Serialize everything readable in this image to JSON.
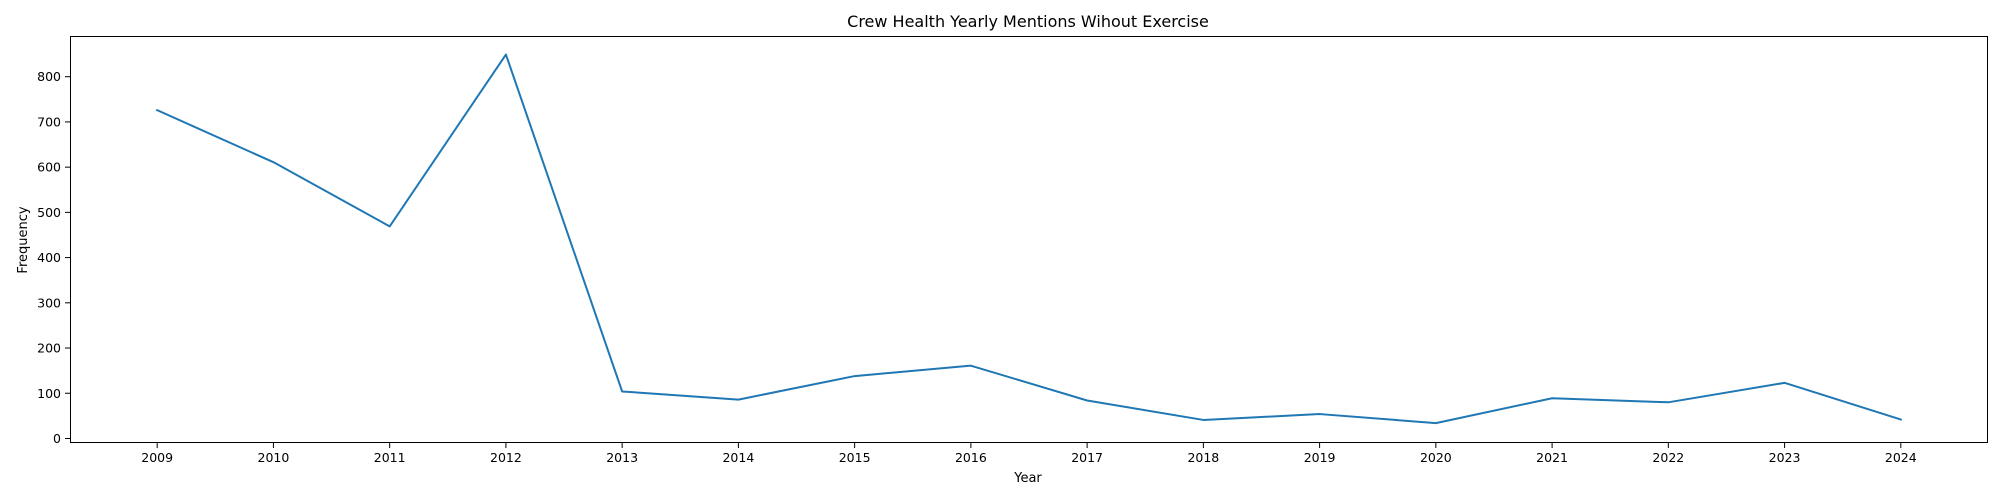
{
  "chart_data": {
    "type": "line",
    "title": "Crew Health Yearly Mentions Wihout Exercise",
    "xlabel": "Year",
    "ylabel": "Frequency",
    "x": [
      2009,
      2010,
      2011,
      2012,
      2013,
      2014,
      2015,
      2016,
      2017,
      2018,
      2019,
      2020,
      2021,
      2022,
      2023,
      2024
    ],
    "xlim": [
      2008.25,
      2024.75
    ],
    "ylim": [
      -10,
      890
    ],
    "yticks": [
      0,
      100,
      200,
      300,
      400,
      500,
      600,
      700,
      800
    ],
    "grid": false,
    "series": [
      {
        "name": "",
        "color": "#1f77b4",
        "values": [
          726,
          611,
          469,
          849,
          104,
          86,
          138,
          161,
          84,
          41,
          54,
          34,
          89,
          80,
          123,
          42
        ]
      }
    ]
  }
}
